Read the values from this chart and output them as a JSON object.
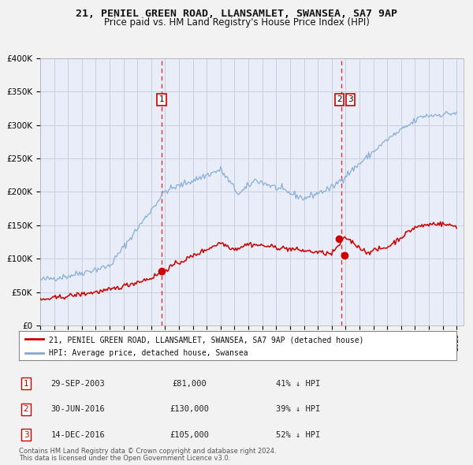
{
  "title1": "21, PENIEL GREEN ROAD, LLANSAMLET, SWANSEA, SA7 9AP",
  "title2": "Price paid vs. HM Land Registry's House Price Index (HPI)",
  "ylim": [
    0,
    400000
  ],
  "yticks": [
    0,
    50000,
    100000,
    150000,
    200000,
    250000,
    300000,
    350000,
    400000
  ],
  "ytick_labels": [
    "£0",
    "£50K",
    "£100K",
    "£150K",
    "£200K",
    "£250K",
    "£300K",
    "£350K",
    "£400K"
  ],
  "fig_bg_color": "#f0f0f0",
  "plot_bg_color": "#e8edf8",
  "grid_color": "#c8cfe0",
  "red_line_color": "#cc0000",
  "blue_line_color": "#7fa8d4",
  "vline_color": "#dd3333",
  "sale1_date_num": 2003.75,
  "sale1_price": 81000,
  "sale2_date_num": 2016.5,
  "sale2_price": 130000,
  "sale3_date_num": 2016.95,
  "sale3_price": 105000,
  "vline2_date_num": 2016.7,
  "legend_label_red": "21, PENIEL GREEN ROAD, LLANSAMLET, SWANSEA, SA7 9AP (detached house)",
  "legend_label_blue": "HPI: Average price, detached house, Swansea",
  "table_rows": [
    {
      "num": "1",
      "date": "29-SEP-2003",
      "price": "£81,000",
      "pct": "41% ↓ HPI"
    },
    {
      "num": "2",
      "date": "30-JUN-2016",
      "price": "£130,000",
      "pct": "39% ↓ HPI"
    },
    {
      "num": "3",
      "date": "14-DEC-2016",
      "price": "£105,000",
      "pct": "52% ↓ HPI"
    }
  ],
  "footnote1": "Contains HM Land Registry data © Crown copyright and database right 2024.",
  "footnote2": "This data is licensed under the Open Government Licence v3.0."
}
